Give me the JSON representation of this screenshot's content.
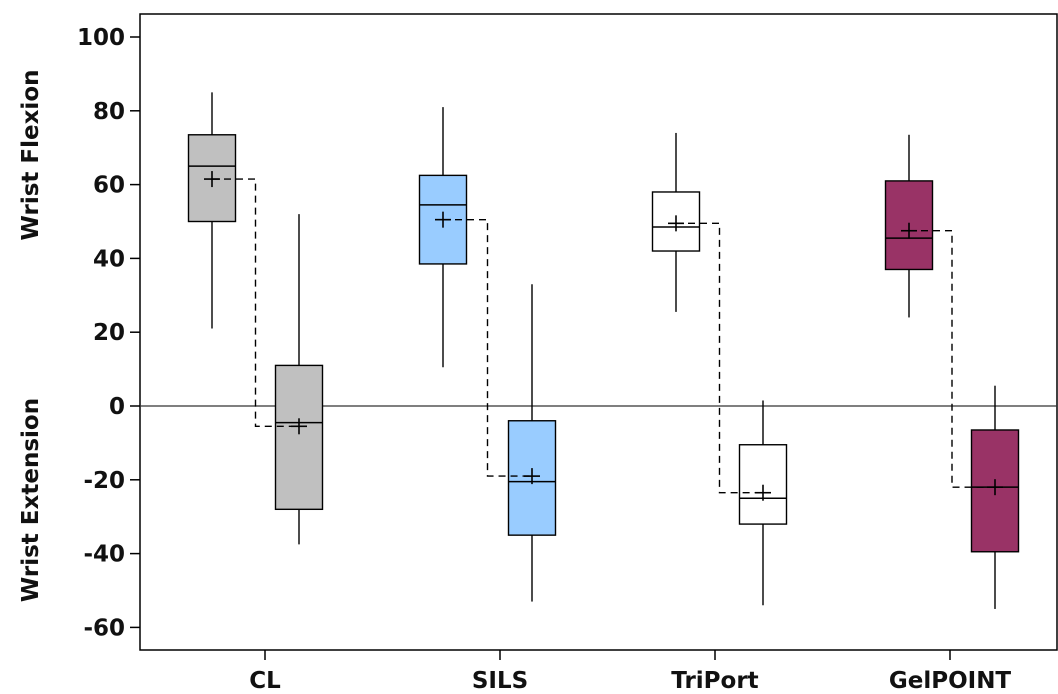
{
  "chart_data": {
    "type": "box",
    "title": "",
    "ylabel_upper": "Wrist Flexion",
    "ylabel_lower": "Wrist Extension",
    "ylim": [
      -65,
      102
    ],
    "yticks": [
      100,
      80,
      60,
      40,
      20,
      0,
      -20,
      -40,
      -60
    ],
    "ytick_labels": [
      "100",
      "80",
      "60",
      "40",
      "20",
      "0",
      "-20",
      "-40",
      "-60"
    ],
    "categories": [
      "CL",
      "SILS",
      "TriPort",
      "GelPOINT"
    ],
    "reference_line_y": 0,
    "grid": false,
    "legend": "none",
    "groups": [
      {
        "category": "CL",
        "color": "#c0c0c0",
        "flexion": {
          "min": 21,
          "q1": 50,
          "median": 65,
          "q3": 73.5,
          "max": 85,
          "mean": 61.5
        },
        "extension": {
          "min": -37.5,
          "q1": -28,
          "median": -4.5,
          "q3": 11,
          "max": 52,
          "mean": -5.5
        }
      },
      {
        "category": "SILS",
        "color": "#99ccff",
        "flexion": {
          "min": 10.5,
          "q1": 38.5,
          "median": 54.5,
          "q3": 62.5,
          "max": 81,
          "mean": 50.5
        },
        "extension": {
          "min": -53,
          "q1": -35,
          "median": -20.5,
          "q3": -4,
          "max": 33,
          "mean": -19
        }
      },
      {
        "category": "TriPort",
        "color": "#ffffff",
        "flexion": {
          "min": 25.5,
          "q1": 42,
          "median": 48.5,
          "q3": 58,
          "max": 74,
          "mean": 49.5
        },
        "extension": {
          "min": -54,
          "q1": -32,
          "median": -25,
          "q3": -10.5,
          "max": 1.5,
          "mean": -23.5
        }
      },
      {
        "category": "GelPOINT",
        "color": "#993366",
        "flexion": {
          "min": 24,
          "q1": 37,
          "median": 45.5,
          "q3": 61,
          "max": 73.5,
          "mean": 47.5
        },
        "extension": {
          "min": -55,
          "q1": -39.5,
          "median": -22,
          "q3": -6.5,
          "max": 5.5,
          "mean": -22
        }
      }
    ]
  }
}
